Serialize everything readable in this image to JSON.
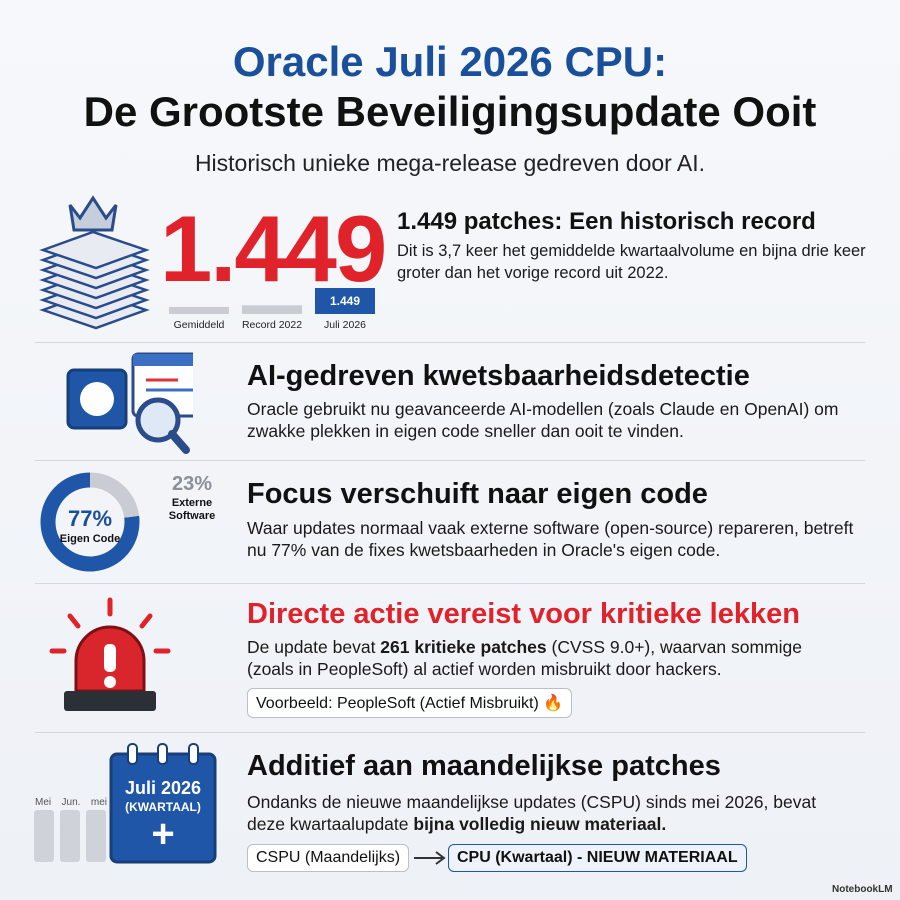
{
  "header": {
    "title_line1": "Oracle Juli 2026 CPU:",
    "title_line2": "De Grootste Beveiligingsupdate Ooit",
    "subtitle": "Historisch unieke mega-release gedreven door AI."
  },
  "record": {
    "big_number": "1.449",
    "heading": "1.449 patches: Een historisch record",
    "body": "Dit is 3,7 keer het gemiddelde kwartaalvolume en bijna drie keer groter dan het vorige record uit 2022."
  },
  "ai": {
    "heading": "AI-gedreven kwetsbaarheidsdetectie",
    "body": "Oracle gebruikt nu geavanceerde AI-modellen (zoals Claude en OpenAI) om zwakke plekken in eigen code sneller dan ooit te vinden."
  },
  "focus": {
    "heading": "Focus verschuift naar eigen code",
    "body": "Waar updates normaal vaak externe software (open-source) repareren, betreft nu 77% van de fixes kwetsbaarheden in Oracle's eigen code."
  },
  "critical": {
    "heading": "Directe actie vereist voor kritieke lekken",
    "body_before": "De update bevat ",
    "body_bold": "261 kritieke patches",
    "body_after": " (CVSS 9.0+), waarvan sommige (zoals in PeopleSoft) al actief worden misbruikt door hackers.",
    "tag": "Voorbeeld: PeopleSoft (Actief Misbruikt) 🔥"
  },
  "monthly": {
    "calendar_line1": "Juli 2026",
    "calendar_line2": "(KWARTAAL)",
    "calendar_plus": "+",
    "month_labels": [
      "Mei",
      "Jun.",
      "mei"
    ],
    "heading": "Additief aan maandelijkse patches",
    "body_before": "Ondanks de nieuwe maandelijkse updates (CSPU) sinds mei 2026, bevat deze kwartaalupdate ",
    "body_bold": "bijna volledig nieuw materiaal.",
    "flow_from": "CSPU (Maandelijks)",
    "flow_to": "CPU (Kwartaal) - NIEUW MATERIAAL"
  },
  "footer": {
    "brand": "NotebookLM"
  },
  "chart_data": [
    {
      "type": "bar",
      "categories": [
        "Gemiddeld",
        "Record 2022",
        "Juli 2026"
      ],
      "values": [
        392,
        483,
        1449
      ],
      "value_labels": [
        null,
        null,
        "1.449"
      ],
      "colors": [
        "#c9cdd3",
        "#c9cdd3",
        "#1f56a8"
      ]
    },
    {
      "type": "donut",
      "categories": [
        "Eigen Code",
        "Externe Software"
      ],
      "values": [
        77,
        23
      ],
      "value_labels": [
        "77%",
        "23%"
      ],
      "colors": [
        "#1f56a8",
        "#c9cdd3"
      ]
    }
  ]
}
